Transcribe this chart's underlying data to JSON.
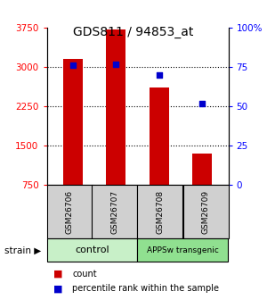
{
  "title": "GDS811 / 94853_at",
  "samples": [
    "GSM26706",
    "GSM26707",
    "GSM26708",
    "GSM26709"
  ],
  "counts": [
    3150,
    3720,
    2600,
    1350
  ],
  "percentiles": [
    76,
    77,
    70,
    52
  ],
  "ylim_left": [
    750,
    3750
  ],
  "ylim_right": [
    0,
    100
  ],
  "yticks_left": [
    750,
    1500,
    2250,
    3000,
    3750
  ],
  "yticks_right": [
    0,
    25,
    50,
    75,
    100
  ],
  "ytick_labels_right": [
    "0",
    "25",
    "50",
    "75",
    "100%"
  ],
  "bar_color": "#cc0000",
  "dot_color": "#0000cc",
  "bar_width": 0.45,
  "group_info": [
    {
      "label": "control",
      "span": [
        0,
        1
      ],
      "color": "#c8f0c8",
      "fontsize": 8
    },
    {
      "label": "APPSw transgenic",
      "span": [
        2,
        3
      ],
      "color": "#90e090",
      "fontsize": 6.5
    }
  ],
  "legend_count": "count",
  "legend_percentile": "percentile rank within the sample",
  "background_color": "#ffffff",
  "plot_bg": "#ffffff",
  "grid_lines": [
    1500,
    2250,
    3000
  ],
  "title_fontsize": 10,
  "tick_fontsize": 7.5,
  "sample_box_color": "#d0d0d0"
}
